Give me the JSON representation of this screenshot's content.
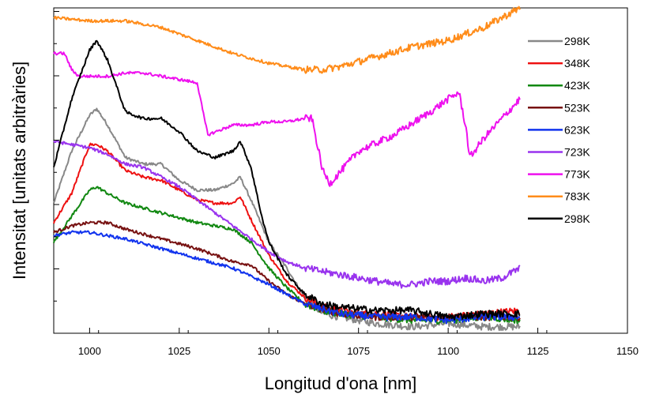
{
  "chart_data": {
    "type": "line",
    "title": "",
    "xlabel": "Longitud d'ona [nm]",
    "ylabel": "Intensitat [unitats arbitràries]",
    "xlim": [
      990,
      1150
    ],
    "ylim": [
      0,
      100
    ],
    "xticks": [
      1000,
      1025,
      1050,
      1075,
      1100,
      1125,
      1150
    ],
    "yticks_labeled": false,
    "legend_position": "right",
    "series": [
      {
        "name": "298K",
        "color": "#888888",
        "points": [
          [
            990,
            40
          ],
          [
            995,
            56
          ],
          [
            1000,
            67
          ],
          [
            1002,
            69
          ],
          [
            1005,
            64
          ],
          [
            1010,
            54
          ],
          [
            1015,
            52
          ],
          [
            1020,
            52
          ],
          [
            1025,
            47
          ],
          [
            1030,
            44
          ],
          [
            1035,
            44
          ],
          [
            1040,
            46
          ],
          [
            1042,
            48
          ],
          [
            1045,
            41
          ],
          [
            1050,
            28
          ],
          [
            1055,
            20
          ],
          [
            1060,
            11
          ],
          [
            1065,
            6
          ],
          [
            1070,
            5
          ],
          [
            1075,
            4
          ],
          [
            1080,
            3
          ],
          [
            1090,
            2
          ],
          [
            1100,
            3
          ],
          [
            1110,
            2
          ],
          [
            1120,
            2
          ]
        ]
      },
      {
        "name": "348K",
        "color": "#ee1111",
        "points": [
          [
            990,
            34
          ],
          [
            995,
            43
          ],
          [
            1000,
            58
          ],
          [
            1002,
            58
          ],
          [
            1005,
            56
          ],
          [
            1010,
            50
          ],
          [
            1015,
            48
          ],
          [
            1020,
            47
          ],
          [
            1025,
            44
          ],
          [
            1030,
            41
          ],
          [
            1035,
            40
          ],
          [
            1040,
            40
          ],
          [
            1042,
            42
          ],
          [
            1045,
            35
          ],
          [
            1050,
            24
          ],
          [
            1055,
            16
          ],
          [
            1060,
            11
          ],
          [
            1065,
            8
          ],
          [
            1070,
            7
          ],
          [
            1075,
            6
          ],
          [
            1080,
            6
          ],
          [
            1090,
            5
          ],
          [
            1100,
            5
          ],
          [
            1110,
            6
          ],
          [
            1120,
            7
          ]
        ]
      },
      {
        "name": "423K",
        "color": "#118811",
        "points": [
          [
            990,
            28
          ],
          [
            995,
            36
          ],
          [
            1000,
            44
          ],
          [
            1002,
            45
          ],
          [
            1005,
            43
          ],
          [
            1010,
            40
          ],
          [
            1020,
            37
          ],
          [
            1030,
            34
          ],
          [
            1040,
            32
          ],
          [
            1045,
            28
          ],
          [
            1050,
            20
          ],
          [
            1055,
            14
          ],
          [
            1060,
            9
          ],
          [
            1065,
            7
          ],
          [
            1070,
            6
          ],
          [
            1080,
            5
          ],
          [
            1090,
            4
          ],
          [
            1100,
            4
          ],
          [
            1110,
            5
          ],
          [
            1120,
            4
          ]
        ]
      },
      {
        "name": "523K",
        "color": "#771111",
        "points": [
          [
            990,
            31
          ],
          [
            995,
            33
          ],
          [
            1000,
            34
          ],
          [
            1005,
            34
          ],
          [
            1010,
            32
          ],
          [
            1020,
            29
          ],
          [
            1030,
            26
          ],
          [
            1040,
            22
          ],
          [
            1045,
            21
          ],
          [
            1050,
            16
          ],
          [
            1055,
            12
          ],
          [
            1060,
            9
          ],
          [
            1070,
            6
          ],
          [
            1080,
            5
          ],
          [
            1090,
            5
          ],
          [
            1100,
            5
          ],
          [
            1110,
            5
          ],
          [
            1120,
            5
          ]
        ]
      },
      {
        "name": "623K",
        "color": "#1133ee",
        "points": [
          [
            990,
            30
          ],
          [
            995,
            31
          ],
          [
            1000,
            31
          ],
          [
            1010,
            29
          ],
          [
            1020,
            26
          ],
          [
            1030,
            23
          ],
          [
            1040,
            20
          ],
          [
            1050,
            15
          ],
          [
            1055,
            12
          ],
          [
            1060,
            9
          ],
          [
            1070,
            6
          ],
          [
            1080,
            5
          ],
          [
            1090,
            5
          ],
          [
            1100,
            4
          ],
          [
            1110,
            5
          ],
          [
            1120,
            5
          ]
        ]
      },
      {
        "name": "723K",
        "color": "#9933ee",
        "points": [
          [
            990,
            59
          ],
          [
            995,
            58
          ],
          [
            1000,
            57
          ],
          [
            1005,
            55
          ],
          [
            1010,
            52
          ],
          [
            1015,
            51
          ],
          [
            1020,
            48
          ],
          [
            1025,
            45
          ],
          [
            1030,
            41
          ],
          [
            1035,
            37
          ],
          [
            1040,
            33
          ],
          [
            1045,
            29
          ],
          [
            1050,
            25
          ],
          [
            1055,
            22
          ],
          [
            1060,
            20
          ],
          [
            1065,
            19
          ],
          [
            1070,
            18
          ],
          [
            1075,
            17
          ],
          [
            1080,
            16
          ],
          [
            1085,
            15
          ],
          [
            1090,
            15
          ],
          [
            1095,
            16
          ],
          [
            1100,
            16
          ],
          [
            1105,
            17
          ],
          [
            1110,
            16
          ],
          [
            1115,
            17
          ],
          [
            1120,
            20
          ]
        ]
      },
      {
        "name": "773K",
        "color": "#ee11ee",
        "points": [
          [
            990,
            86
          ],
          [
            993,
            86
          ],
          [
            995,
            81
          ],
          [
            997,
            79
          ],
          [
            1000,
            79
          ],
          [
            1005,
            79
          ],
          [
            1010,
            80
          ],
          [
            1015,
            80
          ],
          [
            1020,
            79
          ],
          [
            1025,
            78
          ],
          [
            1030,
            77
          ],
          [
            1032,
            66
          ],
          [
            1033,
            61
          ],
          [
            1040,
            64
          ],
          [
            1045,
            64
          ],
          [
            1050,
            65
          ],
          [
            1055,
            65
          ],
          [
            1060,
            66
          ],
          [
            1062,
            66
          ],
          [
            1065,
            50
          ],
          [
            1067,
            46
          ],
          [
            1075,
            56
          ],
          [
            1085,
            61
          ],
          [
            1095,
            68
          ],
          [
            1100,
            72
          ],
          [
            1103,
            74
          ],
          [
            1105,
            63
          ],
          [
            1106,
            54
          ],
          [
            1110,
            60
          ],
          [
            1120,
            72
          ]
        ]
      },
      {
        "name": "783K",
        "color": "#ff8c1a",
        "points": [
          [
            990,
            97
          ],
          [
            1000,
            96
          ],
          [
            1010,
            96
          ],
          [
            1020,
            94
          ],
          [
            1030,
            90
          ],
          [
            1040,
            86
          ],
          [
            1050,
            83
          ],
          [
            1060,
            81
          ],
          [
            1065,
            81
          ],
          [
            1070,
            82
          ],
          [
            1080,
            85
          ],
          [
            1090,
            88
          ],
          [
            1100,
            90
          ],
          [
            1110,
            94
          ],
          [
            1115,
            97
          ],
          [
            1120,
            100
          ]
        ]
      },
      {
        "name": "298K",
        "color": "#000000",
        "points": [
          [
            990,
            51
          ],
          [
            995,
            72
          ],
          [
            1000,
            87
          ],
          [
            1002,
            90
          ],
          [
            1005,
            84
          ],
          [
            1010,
            68
          ],
          [
            1015,
            66
          ],
          [
            1020,
            66
          ],
          [
            1025,
            62
          ],
          [
            1030,
            56
          ],
          [
            1035,
            54
          ],
          [
            1040,
            56
          ],
          [
            1042,
            59
          ],
          [
            1045,
            51
          ],
          [
            1048,
            36
          ],
          [
            1050,
            28
          ],
          [
            1055,
            18
          ],
          [
            1060,
            12
          ],
          [
            1065,
            9
          ],
          [
            1070,
            8
          ],
          [
            1080,
            7
          ],
          [
            1090,
            7
          ],
          [
            1100,
            5
          ],
          [
            1110,
            6
          ],
          [
            1120,
            6
          ]
        ]
      }
    ]
  }
}
